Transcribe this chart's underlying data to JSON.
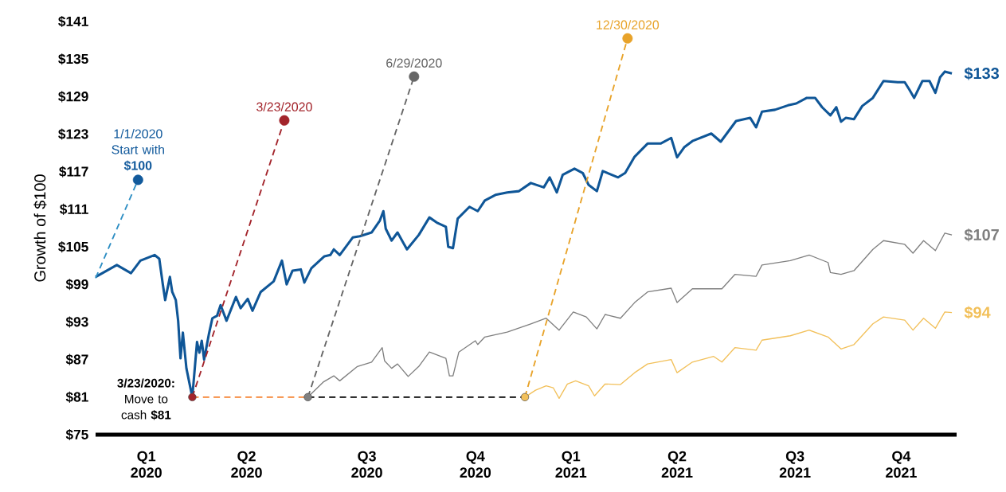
{
  "chart_data": {
    "type": "line",
    "ylabel": "Growth of $100",
    "xlim": [
      "2020-01-01",
      "2021-12-31"
    ],
    "xticks": [
      {
        "value": "2020-02-13",
        "label": "Q1 2020"
      },
      {
        "value": "2020-05-08",
        "label": "Q2 2020"
      },
      {
        "value": "2020-08-18",
        "label": "Q3 2020"
      },
      {
        "value": "2020-11-18",
        "label": "Q4 2020"
      },
      {
        "value": "2021-02-07",
        "label": "Q1 2021"
      },
      {
        "value": "2021-05-08",
        "label": "Q2 2021"
      },
      {
        "value": "2021-08-16",
        "label": "Q3 2021"
      },
      {
        "value": "2021-11-14",
        "label": "Q4 2021"
      }
    ],
    "ylim": [
      75,
      141
    ],
    "ref_lines": [
      {
        "axis": "y",
        "value": 75,
        "color": "#000000"
      }
    ],
    "yticks": [
      {
        "value": 75,
        "label": "$75"
      },
      {
        "value": 81,
        "label": "$81"
      },
      {
        "value": 87,
        "label": "$87"
      },
      {
        "value": 93,
        "label": "$93"
      },
      {
        "value": 99,
        "label": "$99"
      },
      {
        "value": 105,
        "label": "$105"
      },
      {
        "value": 111,
        "label": "$111"
      },
      {
        "value": 117,
        "label": "$117"
      },
      {
        "value": 123,
        "label": "$123"
      },
      {
        "value": 129,
        "label": "$129"
      },
      {
        "value": 135,
        "label": "$135"
      },
      {
        "value": 141,
        "label": "$141"
      }
    ],
    "series": [
      {
        "color": "#0f5697",
        "x": [
          "2020-01-01",
          "2020-01-19",
          "2020-01-31",
          "2020-02-08",
          "2020-02-20",
          "2020-02-24",
          "2020-02-27",
          "2020-02-29",
          "2020-03-04",
          "2020-03-06",
          "2020-03-09",
          "2020-03-11",
          "2020-03-13",
          "2020-03-15",
          "2020-03-18",
          "2020-03-23",
          "2020-03-27",
          "2020-03-29",
          "2020-03-31",
          "2020-04-02",
          "2020-04-06",
          "2020-04-09",
          "2020-04-13",
          "2020-04-16",
          "2020-04-21",
          "2020-04-29",
          "2020-05-03",
          "2020-05-09",
          "2020-05-13",
          "2020-05-20",
          "2020-05-31",
          "2020-06-07",
          "2020-06-11",
          "2020-06-16",
          "2020-06-23",
          "2020-06-26",
          "2020-07-02",
          "2020-07-13",
          "2020-07-18",
          "2020-07-21",
          "2020-07-26",
          "2020-08-06",
          "2020-08-12",
          "2020-08-22",
          "2020-08-29",
          "2020-09-01",
          "2020-09-03",
          "2020-09-08",
          "2020-09-13",
          "2020-09-21",
          "2020-10-01",
          "2020-10-10",
          "2020-10-17",
          "2020-10-24",
          "2020-10-26",
          "2020-10-30",
          "2020-11-03",
          "2020-11-13",
          "2020-11-20",
          "2020-11-26",
          "2020-12-05",
          "2020-12-15",
          "2020-12-25",
          "2021-01-04",
          "2021-01-15",
          "2021-01-20",
          "2021-01-26",
          "2021-01-31",
          "2021-02-10",
          "2021-02-17",
          "2021-02-22",
          "2021-03-01",
          "2021-03-06",
          "2021-03-19",
          "2021-03-25",
          "2021-04-02",
          "2021-04-13",
          "2021-04-24",
          "2021-05-03",
          "2021-05-08",
          "2021-05-14",
          "2021-05-21",
          "2021-06-06",
          "2021-06-14",
          "2021-06-27",
          "2021-07-09",
          "2021-07-14",
          "2021-07-19",
          "2021-07-30",
          "2021-08-10",
          "2021-08-17",
          "2021-08-26",
          "2021-09-02",
          "2021-09-08",
          "2021-09-15",
          "2021-09-20",
          "2021-09-24",
          "2021-09-28",
          "2021-10-05",
          "2021-10-12",
          "2021-10-21",
          "2021-10-30",
          "2021-11-11",
          "2021-11-17",
          "2021-11-21",
          "2021-11-25",
          "2021-12-02",
          "2021-12-08",
          "2021-12-13",
          "2021-12-17",
          "2021-12-21",
          "2021-12-27"
        ],
        "values": [
          100.2,
          102.1,
          100.8,
          102.8,
          103.7,
          103.1,
          99.0,
          96.5,
          100.2,
          97.8,
          96.5,
          93.2,
          87.2,
          91.3,
          85.6,
          81,
          89.8,
          88.1,
          90.0,
          87.0,
          91.0,
          93.6,
          94.0,
          95.7,
          93.2,
          97.0,
          95.2,
          96.7,
          94.8,
          97.8,
          99.5,
          102.8,
          99.0,
          101.2,
          101.4,
          99.3,
          101.6,
          103.5,
          103.7,
          104.6,
          103.7,
          106.5,
          106.7,
          107.3,
          109.2,
          110.7,
          107.9,
          106.0,
          107.3,
          104.6,
          106.9,
          109.7,
          108.8,
          108.2,
          105.0,
          104.8,
          109.5,
          111.4,
          110.7,
          112.4,
          113.3,
          113.7,
          113.9,
          115.2,
          114.5,
          116.1,
          113.7,
          116.5,
          117.5,
          116.8,
          114.9,
          113.9,
          117.1,
          116.1,
          116.8,
          119.4,
          121.5,
          121.5,
          122.4,
          119.3,
          120.9,
          121.9,
          123.1,
          121.8,
          125.1,
          125.6,
          124.1,
          126.6,
          126.9,
          127.6,
          127.9,
          128.8,
          128.8,
          127.3,
          126.0,
          127.3,
          125.0,
          125.6,
          125.4,
          127.5,
          128.8,
          131.5,
          131.3,
          131.3,
          130.1,
          128.8,
          131.5,
          131.5,
          129.6,
          132.1,
          133.0,
          132.7
        ],
        "value_labels": [
          null,
          null,
          null,
          null,
          null,
          null,
          null,
          null,
          null,
          null,
          null,
          null,
          null,
          null,
          null,
          null,
          null,
          null,
          null,
          null,
          null,
          null,
          null,
          null,
          null,
          null,
          null,
          null,
          null,
          null,
          null,
          null,
          null,
          null,
          null,
          null,
          null,
          null,
          null,
          null,
          null,
          null,
          null,
          null,
          null,
          null,
          null,
          null,
          null,
          null,
          null,
          null,
          null,
          null,
          null,
          null,
          null,
          null,
          null,
          null,
          null,
          null,
          null,
          null,
          null,
          null,
          null,
          null,
          null,
          null,
          null,
          null,
          null,
          null,
          null,
          null,
          null,
          null,
          null,
          null,
          null,
          null,
          null,
          null,
          null,
          null,
          null,
          null,
          null,
          null,
          null,
          null,
          null,
          null,
          null,
          null,
          null,
          null,
          null,
          null,
          null,
          null,
          null,
          null,
          null,
          null,
          null,
          null,
          null,
          null,
          null,
          "$133"
        ]
      },
      {
        "color": "#7f7f7f",
        "x": [
          "2020-06-29",
          "2020-07-12",
          "2020-07-21",
          "2020-07-26",
          "2020-08-10",
          "2020-08-22",
          "2020-08-31",
          "2020-09-02",
          "2020-09-08",
          "2020-09-13",
          "2020-09-22",
          "2020-10-01",
          "2020-10-10",
          "2020-10-24",
          "2020-10-27",
          "2020-10-30",
          "2020-11-04",
          "2020-11-18",
          "2020-11-20",
          "2020-11-26",
          "2020-12-15",
          "2021-01-04",
          "2021-01-17",
          "2021-01-28",
          "2021-02-09",
          "2021-02-20",
          "2021-03-01",
          "2021-03-08",
          "2021-03-21",
          "2021-04-02",
          "2021-04-13",
          "2021-05-03",
          "2021-05-08",
          "2021-05-21",
          "2021-06-15",
          "2021-06-26",
          "2021-07-14",
          "2021-07-19",
          "2021-08-12",
          "2021-08-28",
          "2021-09-13",
          "2021-09-15",
          "2021-09-24",
          "2021-10-05",
          "2021-10-21",
          "2021-10-30",
          "2021-11-17",
          "2021-11-24",
          "2021-12-03",
          "2021-12-13",
          "2021-12-21",
          "2021-12-27"
        ],
        "values": [
          81,
          83.4,
          84.4,
          83.6,
          85.9,
          86.6,
          88.9,
          86.8,
          85.6,
          86.3,
          84.3,
          85.9,
          88.2,
          87.2,
          84.4,
          84.4,
          88.2,
          90.0,
          89.4,
          90.6,
          91.4,
          92.7,
          93.6,
          91.7,
          94.6,
          93.8,
          91.9,
          94.2,
          93.6,
          96.1,
          97.8,
          98.4,
          96.1,
          98.3,
          98.3,
          100.6,
          100.3,
          102.1,
          102.8,
          103.7,
          102.5,
          100.9,
          100.6,
          101.2,
          104.6,
          106.0,
          105.4,
          104.0,
          106.0,
          104.4,
          107.2,
          106.9
        ],
        "value_labels": [
          null,
          null,
          null,
          null,
          null,
          null,
          null,
          null,
          null,
          null,
          null,
          null,
          null,
          null,
          null,
          null,
          null,
          null,
          null,
          null,
          null,
          null,
          null,
          null,
          null,
          null,
          null,
          null,
          null,
          null,
          null,
          null,
          null,
          null,
          null,
          null,
          null,
          null,
          null,
          null,
          null,
          null,
          null,
          null,
          null,
          null,
          null,
          null,
          null,
          null,
          null,
          "$107"
        ]
      },
      {
        "color": "#f2c05a",
        "x": [
          "2020-12-30",
          "2021-01-08",
          "2021-01-17",
          "2021-01-23",
          "2021-01-28",
          "2021-02-04",
          "2021-02-11",
          "2021-02-22",
          "2021-02-27",
          "2021-03-08",
          "2021-03-21",
          "2021-04-02",
          "2021-04-13",
          "2021-05-03",
          "2021-05-08",
          "2021-05-21",
          "2021-06-08",
          "2021-06-15",
          "2021-06-26",
          "2021-07-14",
          "2021-07-19",
          "2021-08-12",
          "2021-08-28",
          "2021-09-13",
          "2021-09-24",
          "2021-10-05",
          "2021-10-21",
          "2021-10-30",
          "2021-11-17",
          "2021-11-24",
          "2021-12-03",
          "2021-12-13",
          "2021-12-21",
          "2021-12-27"
        ],
        "values": [
          81,
          82.1,
          82.8,
          82.5,
          80.8,
          83.1,
          83.6,
          82.8,
          81.2,
          83.1,
          83.0,
          84.9,
          86.3,
          87.0,
          84.9,
          86.6,
          87.5,
          86.6,
          88.9,
          88.5,
          90.1,
          90.8,
          91.7,
          90.6,
          88.7,
          89.4,
          92.7,
          93.8,
          93.3,
          91.7,
          93.6,
          92.0,
          94.6,
          94.5
        ],
        "value_labels": [
          null,
          null,
          null,
          null,
          null,
          null,
          null,
          null,
          null,
          null,
          null,
          null,
          null,
          null,
          null,
          null,
          null,
          null,
          null,
          null,
          null,
          null,
          null,
          null,
          null,
          null,
          null,
          null,
          null,
          null,
          null,
          null,
          null,
          "$94"
        ]
      },
      {
        "line_style": "dashed",
        "color": "#2f8fc4",
        "x": [
          "2020-01-01",
          "2020-02-06"
        ],
        "values": [
          100,
          115.7
        ]
      },
      {
        "line_style": "dashed",
        "color": "#a3242b",
        "x": [
          "2020-03-23",
          "2020-06-09"
        ],
        "values": [
          81,
          125.2
        ]
      },
      {
        "line_style": "dashed",
        "color": "#666666",
        "x": [
          "2020-06-29",
          "2020-09-27"
        ],
        "values": [
          81,
          132.2
        ]
      },
      {
        "line_style": "dashed",
        "color": "#e8a32a",
        "x": [
          "2020-12-30",
          "2021-03-27"
        ],
        "values": [
          81,
          138.3
        ]
      },
      {
        "line_style": "dashed",
        "color": "#f58231",
        "x": [
          "2020-03-23",
          "2020-06-29"
        ],
        "values": [
          81,
          81
        ]
      },
      {
        "line_style": "dashed",
        "color": "#000000",
        "x": [
          "2020-06-29",
          "2020-12-30"
        ],
        "values": [
          81,
          81
        ]
      },
      {
        "type": "scatter",
        "marker": "circle",
        "color": "#125a9c",
        "x": [
          "2020-02-06"
        ],
        "values": [
          115.7
        ]
      },
      {
        "type": "scatter",
        "marker": "circle",
        "color": "#a3242b",
        "x": [
          "2020-06-09"
        ],
        "values": [
          125.2
        ]
      },
      {
        "type": "scatter",
        "marker": "circle",
        "color": "#666666",
        "x": [
          "2020-09-27"
        ],
        "values": [
          132.2
        ]
      },
      {
        "type": "scatter",
        "marker": "circle",
        "color": "#e8a32a",
        "x": [
          "2021-03-27"
        ],
        "values": [
          138.3
        ]
      },
      {
        "type": "scatter",
        "marker": "circle",
        "colors": [
          "#a3242b",
          "#808080",
          "#f2c05a"
        ],
        "x": [
          "2020-03-23",
          "2020-06-29",
          "2020-12-30"
        ],
        "values": [
          81,
          81,
          81
        ]
      }
    ],
    "annotations": [
      {
        "text": "1/1/2020 Start with **$100**",
        "x": "2020-02-06",
        "y": 115.7
      },
      {
        "text": "3/23/2020",
        "x": "2020-06-09",
        "y": 125.2
      },
      {
        "text": "6/29/2020",
        "x": "2020-09-27",
        "y": 132.2
      },
      {
        "text": "12/30/2020",
        "x": "2021-03-27",
        "y": 138.3
      },
      {
        "text": "**3/23/2020:** Move to cash **$81**",
        "x": "2020-03-23",
        "y": 81
      }
    ]
  }
}
